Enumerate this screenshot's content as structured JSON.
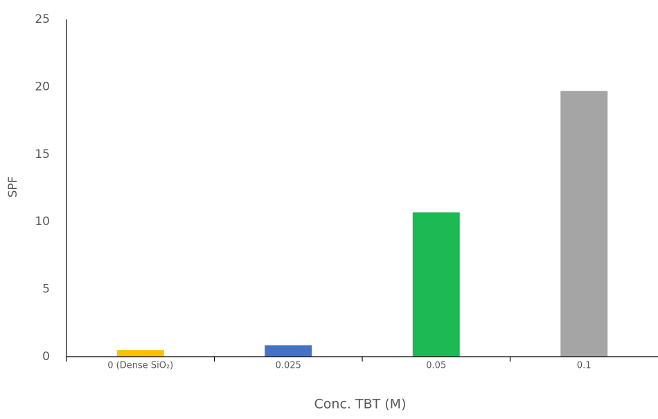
{
  "chart_data": {
    "type": "bar",
    "x_label": "Conc. TBT (M)",
    "y_label": "SPF",
    "categories": [
      "0 (Dense SiO₂)",
      "0.025",
      "0.05",
      "0.1"
    ],
    "values": [
      0.5,
      0.85,
      10.7,
      19.7
    ],
    "colors": [
      "#ffc000",
      "#4472c4",
      "#1db954",
      "#a5a5a5"
    ],
    "ylim": [
      0,
      25
    ],
    "yticks": [
      0,
      5,
      10,
      15,
      20,
      25
    ],
    "grid": false
  }
}
